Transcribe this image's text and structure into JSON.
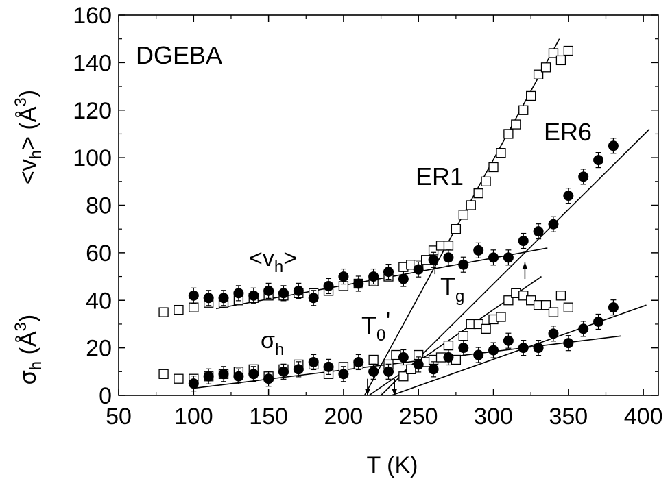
{
  "chart_data": {
    "type": "scatter",
    "xlabel": "T (K)",
    "xlim": [
      50,
      410
    ],
    "ylim": [
      0,
      160
    ],
    "x_ticks": [
      "50",
      "100",
      "150",
      "200",
      "250",
      "300",
      "350",
      "400"
    ],
    "y_ticks": [
      "0",
      "20",
      "40",
      "60",
      "80",
      "100",
      "120",
      "140",
      "160"
    ],
    "ylabel_upper": {
      "main": "<v",
      "sub": "h",
      "rest": "> (Å",
      "sup": "3",
      "end": ")"
    },
    "ylabel_lower": {
      "main": "σ",
      "sub": "h",
      "rest": " (Å",
      "sup": "3",
      "end": ")"
    },
    "annotations": {
      "material": "DGEBA",
      "er1": "ER1",
      "er6": "ER6",
      "vh": {
        "main": "<v",
        "sub": "h",
        "end": ">"
      },
      "sigma": {
        "main": "σ",
        "sub": "h"
      },
      "tg": {
        "main": "T",
        "sub": "g"
      },
      "t0": {
        "main": "T",
        "sub": "0",
        "end": "'"
      }
    },
    "series": [
      {
        "name": "ER1",
        "quantity": "<vh>",
        "marker": "open-square",
        "x": [
          80,
          90,
          100,
          110,
          120,
          130,
          140,
          150,
          160,
          170,
          180,
          190,
          200,
          210,
          220,
          230,
          240,
          245,
          250,
          255,
          260,
          265,
          270,
          275,
          280,
          285,
          290,
          295,
          300,
          305,
          310,
          315,
          320,
          325,
          330,
          335,
          340,
          345,
          350
        ],
        "y": [
          35,
          36,
          37,
          39,
          39,
          40,
          41,
          42,
          42,
          43,
          43,
          44,
          46,
          47,
          48,
          50,
          54,
          55,
          55,
          57,
          61,
          63,
          63,
          70,
          76,
          80,
          85,
          90,
          96,
          102,
          110,
          114,
          120,
          126,
          135,
          138,
          144,
          141,
          145
        ]
      },
      {
        "name": "ER6",
        "quantity": "<vh>",
        "marker": "filled-circle",
        "x": [
          100,
          110,
          120,
          130,
          140,
          150,
          160,
          170,
          180,
          190,
          200,
          210,
          220,
          230,
          240,
          250,
          260,
          270,
          280,
          290,
          300,
          310,
          320,
          330,
          340,
          350,
          360,
          370,
          380
        ],
        "y": [
          42,
          41,
          41,
          43,
          42,
          44,
          43,
          44,
          41,
          46,
          50,
          47,
          50,
          52,
          49,
          53,
          57,
          58,
          55,
          61,
          58,
          58,
          65,
          69,
          72,
          84,
          92,
          99,
          105
        ]
      },
      {
        "name": "ER1",
        "quantity": "σh",
        "marker": "open-square",
        "x": [
          80,
          90,
          100,
          110,
          120,
          130,
          140,
          150,
          160,
          170,
          180,
          190,
          200,
          210,
          220,
          230,
          235,
          240,
          245,
          250,
          255,
          260,
          265,
          270,
          275,
          280,
          285,
          290,
          295,
          300,
          305,
          310,
          315,
          320,
          325,
          330,
          335,
          340,
          345,
          350
        ],
        "y": [
          9,
          7,
          7,
          8,
          9,
          10,
          11,
          8,
          11,
          13,
          13,
          9,
          12,
          13,
          15,
          13,
          17,
          8,
          11,
          17,
          14,
          15,
          16,
          21,
          15,
          25,
          30,
          30,
          28,
          32,
          33,
          40,
          43,
          42,
          40,
          38,
          38,
          35,
          42,
          37
        ]
      },
      {
        "name": "ER6",
        "quantity": "σh",
        "marker": "filled-circle",
        "x": [
          100,
          110,
          120,
          130,
          140,
          150,
          160,
          170,
          180,
          190,
          200,
          210,
          220,
          230,
          240,
          250,
          260,
          270,
          280,
          290,
          300,
          310,
          320,
          330,
          340,
          350,
          360,
          370,
          380
        ],
        "y": [
          5,
          8,
          9,
          8,
          9,
          7,
          10,
          11,
          14,
          12,
          9,
          14,
          10,
          10,
          16,
          13,
          11,
          16,
          20,
          17,
          19,
          23,
          20,
          20,
          26,
          22,
          28,
          31,
          37
        ]
      }
    ],
    "fit_lines": [
      {
        "x": [
          115,
          336
        ],
        "y": [
          36.5,
          62
        ]
      },
      {
        "x": [
          214,
          344
        ],
        "y": [
          0,
          150
        ]
      },
      {
        "x": [
          225,
          404
        ],
        "y": [
          0,
          112
        ]
      },
      {
        "x": [
          217,
          332
        ],
        "y": [
          0,
          50
        ]
      },
      {
        "x": [
          232,
          402
        ],
        "y": [
          0,
          38
        ]
      },
      {
        "x": [
          100,
          385
        ],
        "y": [
          3,
          25
        ]
      }
    ],
    "arrows": [
      {
        "label": "T0' ER1",
        "x": 216,
        "y_from": 7,
        "y_to": 0
      },
      {
        "label": "T0' ER6",
        "x": 234,
        "y_from": 7,
        "y_to": 0
      },
      {
        "label": "Tg ER1",
        "x": 261,
        "y_from": 51,
        "y_to": 58
      },
      {
        "label": "Tg ER6",
        "x": 321,
        "y_from": 49,
        "y_to": 56
      }
    ]
  }
}
